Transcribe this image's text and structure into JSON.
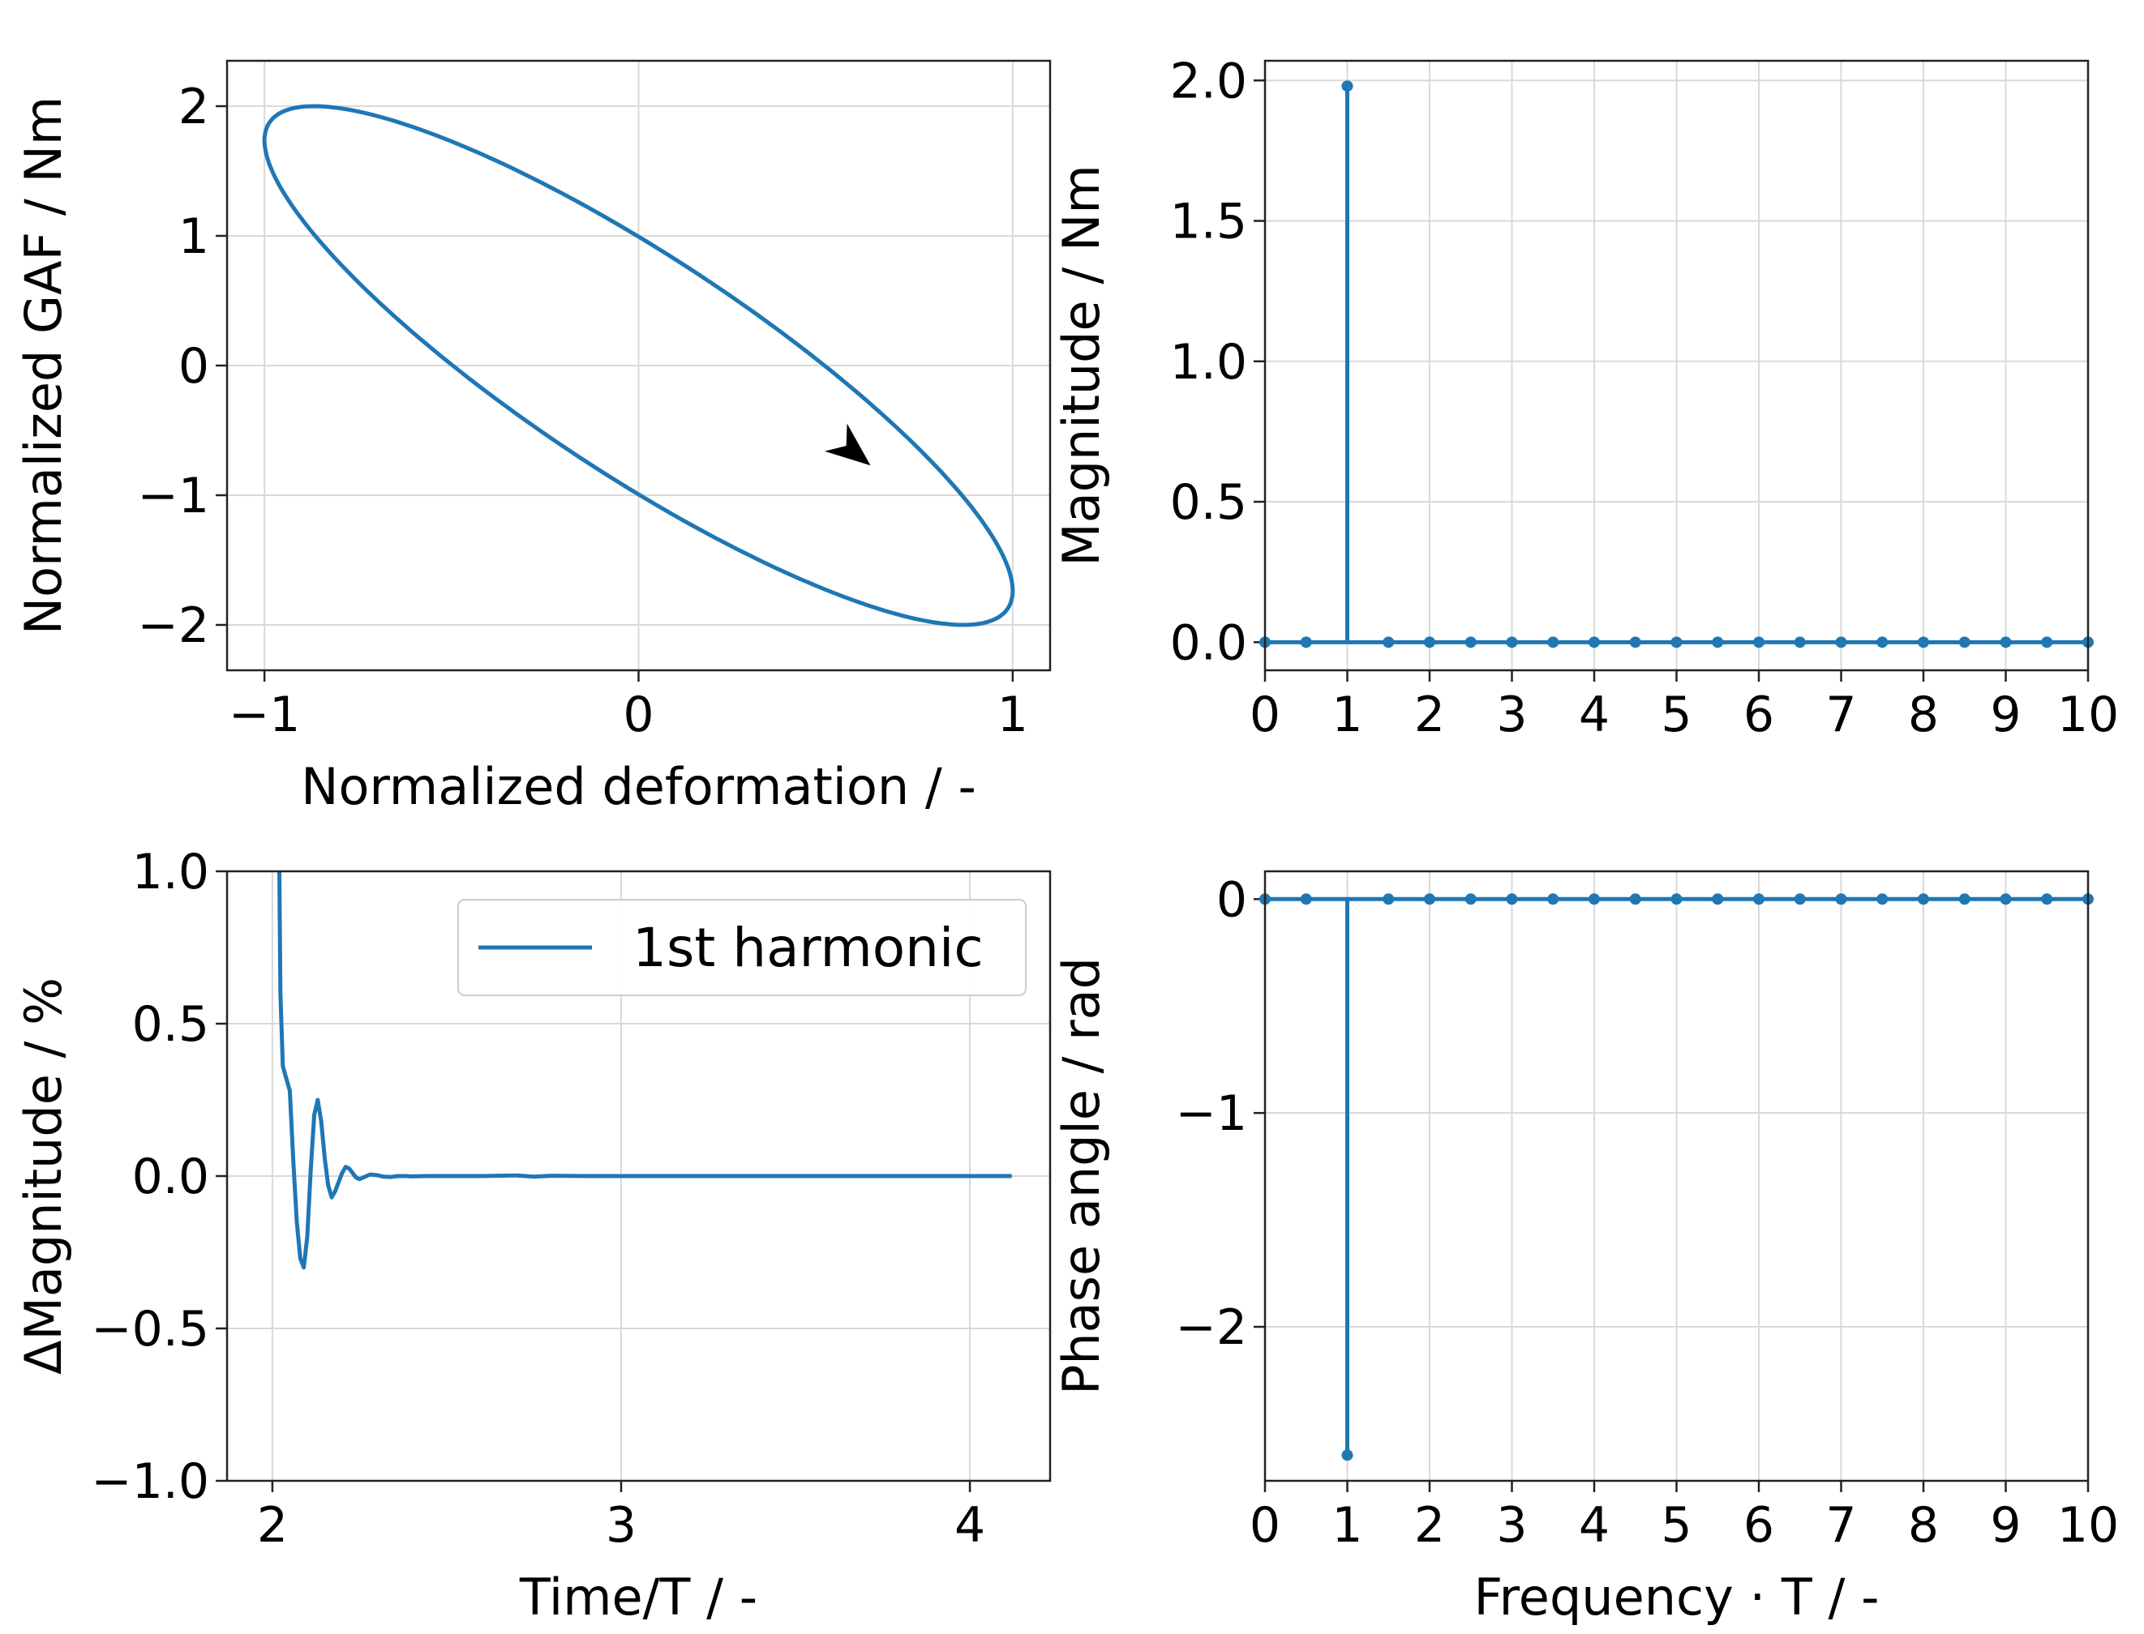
{
  "figure": {
    "background": "#ffffff",
    "line_color": "#1f77b4",
    "arrow_color": "#000000"
  },
  "chart_data": [
    {
      "id": "hysteresis",
      "type": "line",
      "title": "",
      "xlabel": "Normalized deformation / -",
      "ylabel": "Normalized GAF / Nm",
      "xlim": [
        -1.1,
        1.1
      ],
      "ylim": [
        -2.35,
        2.35
      ],
      "xticks": [
        -1,
        0,
        1
      ],
      "xtick_labels": [
        "−1",
        "0",
        "1"
      ],
      "yticks": [
        -2,
        -1,
        0,
        1,
        2
      ],
      "ytick_labels": [
        "−2",
        "−1",
        "0",
        "1",
        "2"
      ],
      "grid": true,
      "series": [
        {
          "name": "ellipse",
          "param": "x = cos(t), y = -2 cos(t - phase)",
          "amplitude": 2.0,
          "phase_rad": 0.52,
          "samples": 240
        }
      ],
      "annotation": {
        "type": "arrow",
        "at_x": 0.62,
        "at_y": -0.77,
        "direction": "clockwise"
      }
    },
    {
      "id": "magnitude-spectrum",
      "type": "stem",
      "title": "",
      "xlabel": "",
      "ylabel": "Magnitude / Nm",
      "xlim": [
        0,
        10
      ],
      "ylim": [
        -0.1,
        2.07
      ],
      "xticks": [
        0,
        1,
        2,
        3,
        4,
        5,
        6,
        7,
        8,
        9,
        10
      ],
      "xtick_labels": [
        "0",
        "1",
        "2",
        "3",
        "4",
        "5",
        "6",
        "7",
        "8",
        "9",
        "10"
      ],
      "yticks": [
        0.0,
        0.5,
        1.0,
        1.5,
        2.0
      ],
      "ytick_labels": [
        "0.0",
        "0.5",
        "1.0",
        "1.5",
        "2.0"
      ],
      "grid": true,
      "baseline": 0,
      "x": [
        0,
        0.5,
        1,
        1.5,
        2,
        2.5,
        3,
        3.5,
        4,
        4.5,
        5,
        5.5,
        6,
        6.5,
        7,
        7.5,
        8,
        8.5,
        9,
        9.5,
        10
      ],
      "values": [
        0,
        0,
        1.98,
        0,
        0,
        0,
        0,
        0,
        0,
        0,
        0,
        0,
        0,
        0,
        0,
        0,
        0,
        0,
        0,
        0,
        0
      ]
    },
    {
      "id": "delta-magnitude",
      "type": "line",
      "title": "",
      "xlabel": "Time/T / -",
      "ylabel": "ΔMagnitude / %",
      "xlim": [
        1.87,
        4.23
      ],
      "ylim": [
        -1.0,
        1.0
      ],
      "xticks": [
        2,
        3,
        4
      ],
      "xtick_labels": [
        "2",
        "3",
        "4"
      ],
      "yticks": [
        -1.0,
        -0.5,
        0.0,
        0.5,
        1.0
      ],
      "ytick_labels": [
        "−1.0",
        "−0.5",
        "0.0",
        "0.5",
        "1.0"
      ],
      "grid": true,
      "legend": {
        "position": "upper-right",
        "entries": [
          "1st harmonic"
        ]
      },
      "series": [
        {
          "name": "1st harmonic",
          "x": [
            2.02,
            2.023,
            2.03,
            2.04,
            2.05,
            2.06,
            2.07,
            2.08,
            2.09,
            2.1,
            2.11,
            2.12,
            2.13,
            2.14,
            2.15,
            2.16,
            2.17,
            2.18,
            2.19,
            2.2,
            2.21,
            2.22,
            2.23,
            2.24,
            2.25,
            2.26,
            2.27,
            2.28,
            2.3,
            2.32,
            2.34,
            2.36,
            2.38,
            2.4,
            2.44,
            2.5,
            2.6,
            2.7,
            2.75,
            2.8,
            2.9,
            3.0,
            3.5,
            4.0,
            4.12
          ],
          "values": [
            1.0,
            0.6,
            0.36,
            0.32,
            0.28,
            0.05,
            -0.15,
            -0.27,
            -0.3,
            -0.2,
            0.02,
            0.2,
            0.25,
            0.18,
            0.06,
            -0.03,
            -0.07,
            -0.05,
            -0.02,
            0.01,
            0.03,
            0.025,
            0.01,
            -0.005,
            -0.01,
            -0.005,
            0.0,
            0.005,
            0.003,
            -0.002,
            -0.003,
            0.0,
            0.0,
            -0.001,
            0.0,
            0.0,
            0.0,
            0.002,
            -0.002,
            0.001,
            0.0,
            0.0,
            0.0,
            0.0,
            0.0
          ]
        }
      ]
    },
    {
      "id": "phase-spectrum",
      "type": "stem",
      "title": "",
      "xlabel": "Frequency · T / -",
      "ylabel": "Phase angle / rad",
      "xlim": [
        0,
        10
      ],
      "ylim": [
        -2.72,
        0.13
      ],
      "xticks": [
        0,
        1,
        2,
        3,
        4,
        5,
        6,
        7,
        8,
        9,
        10
      ],
      "xtick_labels": [
        "0",
        "1",
        "2",
        "3",
        "4",
        "5",
        "6",
        "7",
        "8",
        "9",
        "10"
      ],
      "yticks": [
        -2,
        -1,
        0
      ],
      "ytick_labels": [
        "−2",
        "−1",
        "0"
      ],
      "grid": true,
      "baseline": 0,
      "x": [
        0,
        0.5,
        1,
        1.5,
        2,
        2.5,
        3,
        3.5,
        4,
        4.5,
        5,
        5.5,
        6,
        6.5,
        7,
        7.5,
        8,
        8.5,
        9,
        9.5,
        10
      ],
      "values": [
        0,
        0,
        -2.6,
        0,
        0,
        0,
        0,
        0,
        0,
        0,
        0,
        0,
        0,
        0,
        0,
        0,
        0,
        0,
        0,
        0,
        0
      ]
    }
  ]
}
